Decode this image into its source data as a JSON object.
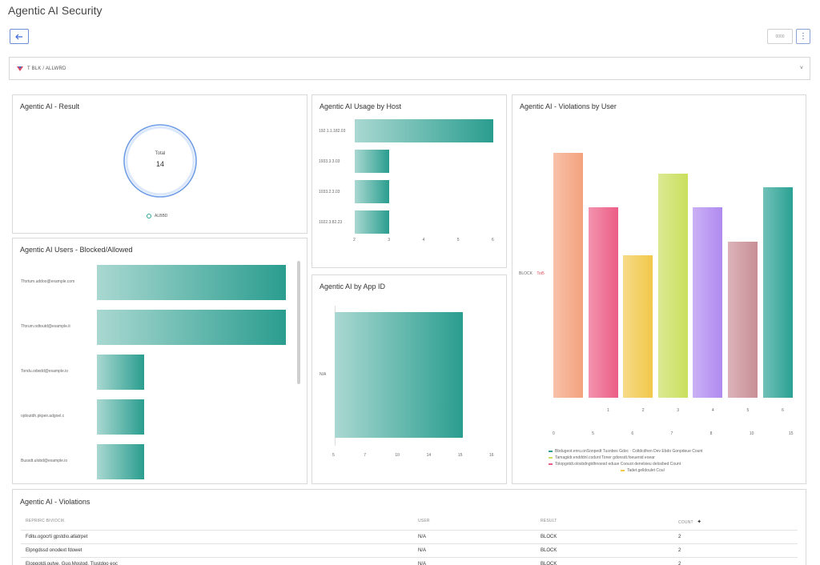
{
  "page": {
    "title": "Agentic AI Security"
  },
  "toolbar": {
    "small_button_label": "0000",
    "more_label": "⋮"
  },
  "filter": {
    "text": "T BLK / ALLWRD"
  },
  "result_panel": {
    "title": "Agentic AI - Result",
    "total_label": "Total",
    "total_value": "14",
    "legend_label": "ALBBD"
  },
  "usage_by_host": {
    "title": "Agentic AI Usage by Host",
    "chart_data": {
      "type": "bar",
      "orientation": "horizontal",
      "categories": [
        "192.1.1.182.03",
        "1933.3.3.03",
        "1033.2.3.03",
        "1022.3.82.23"
      ],
      "values": [
        6,
        3,
        3,
        3
      ],
      "xlim": [
        2,
        6
      ],
      "ticks": [
        "2",
        "3",
        "4",
        "5",
        "6"
      ]
    }
  },
  "users_blocked": {
    "title": "Agentic AI Users - Blocked/Allowed",
    "chart_data": {
      "type": "bar",
      "orientation": "horizontal",
      "categories": [
        "Tfortum.uddoo@example.com",
        "Tforum.odtoutd@example.it",
        "Tondu.odwdd@example.io",
        "ojdoutdh.pkpeir.adgoel.c",
        "Bussdt.ulobd@example.io"
      ],
      "values": [
        4,
        4,
        1,
        1,
        1
      ],
      "xlim": [
        0,
        4.3
      ]
    }
  },
  "by_app_id": {
    "title": "Agentic AI by App ID",
    "chart_data": {
      "type": "bar",
      "orientation": "horizontal",
      "categories": [
        "N/A"
      ],
      "values": [
        14
      ],
      "xlim": [
        5,
        16
      ],
      "ticks": [
        "5",
        "7",
        "10",
        "14",
        "15",
        "16"
      ]
    }
  },
  "violations_by_user": {
    "title": "Agentic AI - Violations by User",
    "y_category": "BLOCK",
    "y_value_label": "Tot5",
    "chart_data": {
      "type": "bar",
      "x": [
        "",
        "1",
        "2",
        "3",
        "4",
        "5",
        "6"
      ],
      "values": [
        18,
        14,
        10.5,
        16.5,
        14,
        11.5,
        15.5
      ],
      "colors": [
        "#f4a27e",
        "#ec5d86",
        "#f1c84a",
        "#c9df5d",
        "#b08af0",
        "#c98e96",
        "#2aa194"
      ],
      "ylim": [
        0,
        20
      ],
      "ticks": [
        "0",
        "5",
        "6",
        "7",
        "8",
        "10",
        "15"
      ]
    },
    "legend": [
      {
        "color": "#2aa194",
        "label": "Bbdugeot.enru.onSonpedt Tusnbes Gdoc · Coltdcdhen Dev Ebdo Gonpdeue Count"
      },
      {
        "color": "#c9df5d",
        "label": "Tamagiidr.endddnl.codunt  Toner gdonsdt.foeuenid eoear"
      },
      {
        "color": "#ec5d86",
        "label": "Tolopgotdi.olosbdngtdhnoesd eduue  Coouot denelsieu delosbed Count"
      },
      {
        "color": "#f1c84a",
        "label": "Tadet.gelldoulet Coul"
      }
    ]
  },
  "violations_table": {
    "title": "Agentic AI - Violations",
    "headers": {
      "col1": "REPRIRC BIVIOCIK",
      "col2": "USER",
      "col3": "RESULT",
      "col4": "COUNT"
    },
    "rows": [
      {
        "name": "Fditu.ogocrti gpstdio.atlatrpet",
        "user": "N/A",
        "result": "BLOCK",
        "count": "2"
      },
      {
        "name": "Elpngdssd onodext fdowet",
        "user": "N/A",
        "result": "BLOCK",
        "count": "2"
      },
      {
        "name": "Elopgotdi.outye. Guo.Mostod. Tlustdoo eoc",
        "user": "N/A",
        "result": "BLOCK",
        "count": "2"
      }
    ]
  }
}
